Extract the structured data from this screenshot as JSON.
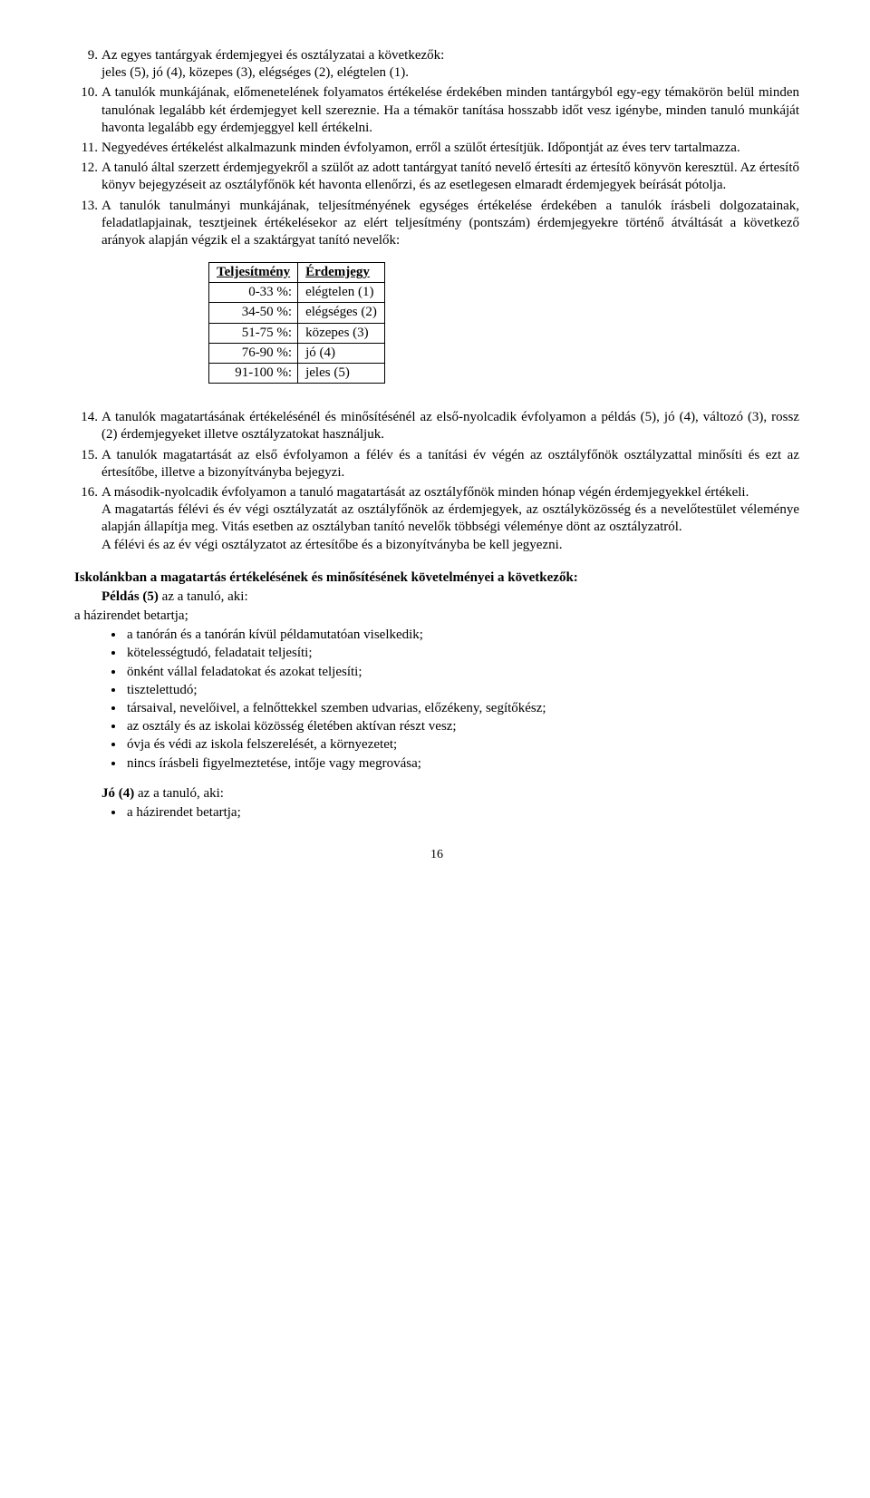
{
  "items9to13": [
    {
      "num": "9.",
      "paras": [
        "Az egyes tantárgyak érdemjegyei és osztályzatai a következők:",
        "jeles (5), jó (4), közepes (3), elégséges (2), elégtelen (1)."
      ]
    },
    {
      "num": "10.",
      "paras": [
        "A tanulók munkájának, előmenetelének folyamatos értékelése érdekében minden tantárgyból egy-egy témakörön belül minden tanulónak legalább két érdemjegyet kell szereznie. Ha a témakör tanítása hosszabb időt vesz igénybe, minden tanuló munkáját havonta legalább egy érdemjeggyel kell értékelni."
      ]
    },
    {
      "num": "11.",
      "paras": [
        "Negyedéves értékelést alkalmazunk minden évfolyamon, erről a szülőt értesítjük. Időpontját az éves terv tartalmazza."
      ]
    },
    {
      "num": "12.",
      "paras": [
        "A tanuló által szerzett érdemjegyekről a szülőt az adott tantárgyat tanító nevelő értesíti az értesítő könyvön keresztül. Az értesítő könyv bejegyzéseit az osztályfőnök két havonta ellenőrzi, és az esetlegesen elmaradt érdemjegyek beírását pótolja."
      ]
    },
    {
      "num": "13.",
      "paras": [
        "A tanulók tanulmányi munkájának, teljesítményének egységes értékelése érdekében a tanulók írásbeli dolgozatainak, feladatlapjainak, tesztjeinek értékelésekor az elért teljesítmény (pontszám) érdemjegyekre történő átváltását a következő arányok alapján végzik el a szaktárgyat tanító nevelők:"
      ]
    }
  ],
  "table": {
    "head": [
      "Teljesítmény",
      "Érdemjegy"
    ],
    "rows": [
      [
        "0-33 %:",
        "elégtelen (1)"
      ],
      [
        "34-50 %:",
        "elégséges (2)"
      ],
      [
        "51-75 %:",
        "közepes (3)"
      ],
      [
        "76-90 %:",
        "jó (4)"
      ],
      [
        "91-100 %:",
        "jeles (5)"
      ]
    ]
  },
  "items14to16": [
    {
      "num": "14.",
      "paras": [
        "A tanulók magatartásának értékelésénél és minősítésénél az első-nyolcadik évfolyamon a példás (5), jó (4), változó (3), rossz (2) érdemjegyeket illetve osztályzatokat használjuk."
      ]
    },
    {
      "num": "15.",
      "paras": [
        "A tanulók magatartását az első évfolyamon a félév és a tanítási év végén az osztályfőnök osztályzattal minősíti és ezt az értesítőbe, illetve a bizonyítványba bejegyzi."
      ]
    },
    {
      "num": "16.",
      "paras": [
        "A második-nyolcadik évfolyamon a tanuló magatartását az osztályfőnök minden hónap végén érdemjegyekkel értékeli."
      ],
      "subparas": [
        "A magatartás félévi és év végi osztályzatát az osztályfőnök az érdemjegyek, az osztályközösség és a nevelőtestület véleménye alapján állapítja meg. Vitás esetben az osztályban tanító nevelők többségi véleménye dönt az osztályzatról.",
        "A félévi és az év végi osztályzatot az értesítőbe és a bizonyítványba be kell jegyezni."
      ]
    }
  ],
  "behaviorHeading": "Iskolánkban a magatartás értékelésének és minősítésének követelményei a következők:",
  "peldas": {
    "lead_bold": "Példás (5)",
    "lead_rest": " az a tanuló, aki:",
    "pre": "a házirendet betartja;",
    "bullets": [
      "a tanórán és a tanórán kívül példamutatóan viselkedik;",
      "kötelességtudó, feladatait teljesíti;",
      "önként vállal feladatokat és azokat teljesíti;",
      "tisztelettudó;",
      "társaival, nevelőivel, a felnőttekkel szemben udvarias, előzékeny, segítőkész;",
      "az osztály és az iskolai közösség életében aktívan részt vesz;",
      "óvja és védi az iskola felszerelését, a környezetet;",
      "nincs írásbeli figyelmeztetése, intője vagy megrovása;"
    ]
  },
  "jo": {
    "lead_bold": "Jó (4)",
    "lead_rest": " az a tanuló, aki:",
    "bullets": [
      "a házirendet betartja;"
    ]
  },
  "pageNumber": "16"
}
